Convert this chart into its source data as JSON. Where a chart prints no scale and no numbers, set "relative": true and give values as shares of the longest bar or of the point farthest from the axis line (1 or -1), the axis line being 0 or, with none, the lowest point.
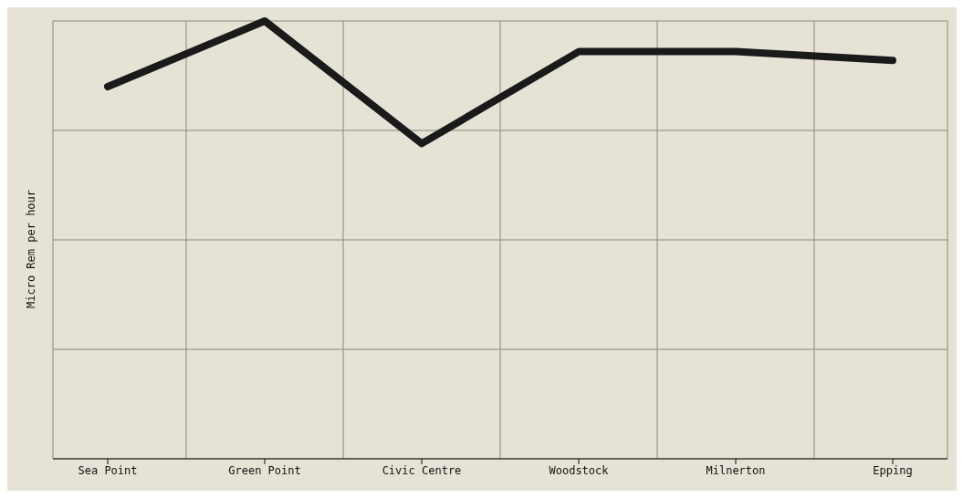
{
  "chart_data": {
    "type": "line",
    "ylabel": "Micro Rem per hour",
    "categories": [
      "Sea Point",
      "Green Point",
      "Civic Centre",
      "Woodstock",
      "Milnerton",
      "Epping"
    ],
    "series": [
      {
        "color": "#1a1a1a",
        "values": [
          0.85,
          1,
          0.72,
          0.93,
          0.93,
          0.91
        ]
      }
    ],
    "relative": true,
    "grid": true,
    "legend": false
  }
}
